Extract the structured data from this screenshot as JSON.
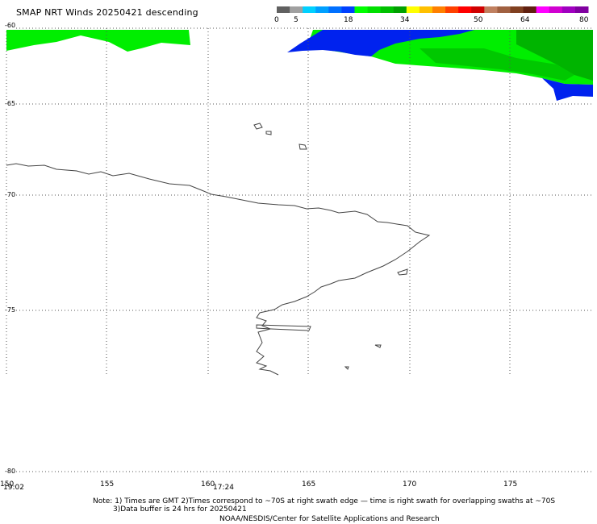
{
  "title": "SMAP NRT Winds  20250421 descending",
  "color_scale": {
    "labels": [
      "0",
      "5",
      "18",
      "34",
      "50",
      "64",
      "80"
    ],
    "colors": [
      "#606060",
      "#a0a0a0",
      "#00d0ff",
      "#00a0ff",
      "#0070ff",
      "#0040ff",
      "#00ff00",
      "#00e000",
      "#00c000",
      "#00a000",
      "#ffff00",
      "#ffc000",
      "#ff8000",
      "#ff4000",
      "#ff0000",
      "#d00000",
      "#c08060",
      "#a06040",
      "#804020",
      "#602010",
      "#ff00ff",
      "#d000d0",
      "#a000c0",
      "#8000a0"
    ]
  },
  "x_axis": {
    "ticks": [
      "155",
      "160",
      "165",
      "170",
      "175"
    ],
    "edge_label": "150"
  },
  "y_axis": {
    "ticks": [
      "-60",
      "-65",
      "-70",
      "-75",
      "-80"
    ]
  },
  "pass_times": [
    "19:02",
    "17:24"
  ],
  "notes": {
    "line1": "Note: 1) Times are GMT 2)Times correspond to ~70S at right swath edge — time is right swath for overlapping swaths at ~70S",
    "line2": "3)Data buffer is 24 hrs for 20250421",
    "line3": "NOAA/NESDIS/Center for Satellite Applications and Research"
  },
  "wind_colors": {
    "light": "#00ee00",
    "dark": "#00b400",
    "low": "#0022ee"
  },
  "map_colors": {
    "coastline": "#444444",
    "grid": "#555555"
  }
}
